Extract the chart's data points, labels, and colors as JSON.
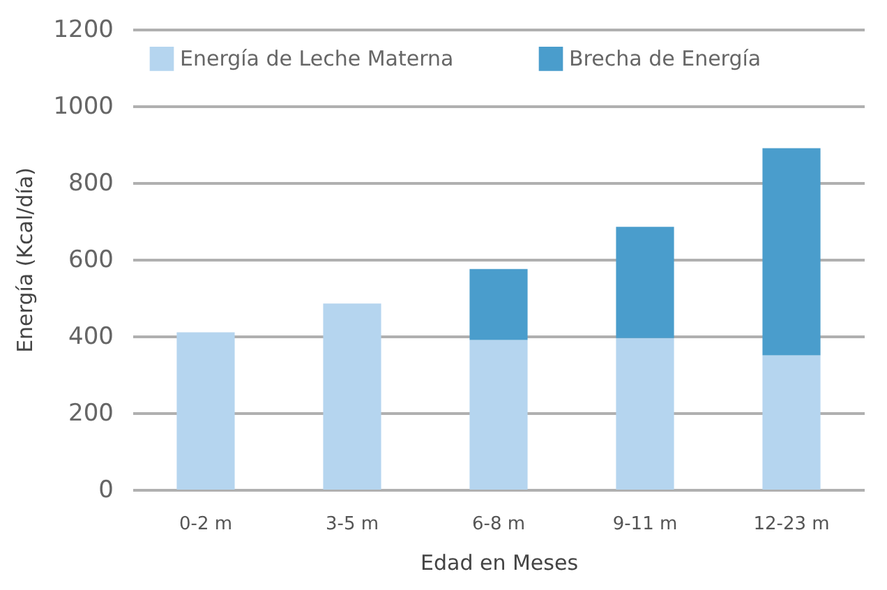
{
  "chart_data": {
    "type": "bar",
    "stacked": true,
    "xlabel": "Edad en Meses",
    "ylabel": "Energía (Kcal/día)",
    "categories": [
      "0-2 m",
      "3-5 m",
      "6-8 m",
      "9-11 m",
      "12-23 m"
    ],
    "series": [
      {
        "name": "Energía de Leche Materna",
        "color": "#b5d5ef",
        "values": [
          410,
          485,
          390,
          395,
          350
        ]
      },
      {
        "name": "Brecha de Energía",
        "color": "#4a9dcc",
        "values": [
          0,
          0,
          185,
          290,
          540
        ]
      }
    ],
    "ylim": [
      0,
      1200
    ],
    "yticks": [
      0,
      200,
      400,
      600,
      800,
      1000,
      1200
    ],
    "grid": "y",
    "legend": "top left"
  }
}
